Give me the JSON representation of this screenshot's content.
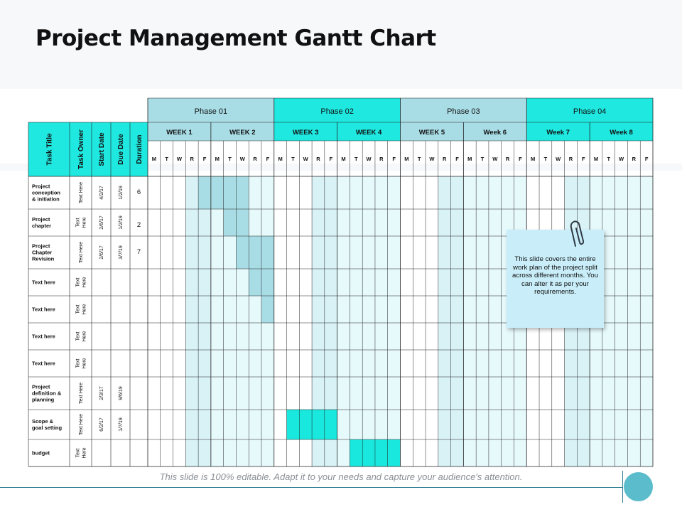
{
  "title": "Project Management Gantt Chart",
  "colors": {
    "phase_light": "#a9dde6",
    "phase_bright": "#1fe8e0",
    "col_light": "#d9f2f6",
    "col_dark": "#e6f9fb",
    "bar_light": "#a9dde6",
    "bar_bright": "#19e8de",
    "grid": "#222222",
    "note": "#c9eef9"
  },
  "header": {
    "task_title": "Task Title",
    "task_owner": "Task Owner",
    "start_date": "Start Date",
    "due_date": "Due Date",
    "duration": "Duration"
  },
  "phases": [
    {
      "label": "Phase 01",
      "style": "light"
    },
    {
      "label": "Phase 02",
      "style": "bright"
    },
    {
      "label": "Phase 03",
      "style": "light"
    },
    {
      "label": "Phase 04",
      "style": "bright"
    }
  ],
  "weeks": [
    "WEEK 1",
    "WEEK 2",
    "WEEK 3",
    "WEEK 4",
    "WEEK 5",
    "Week 6",
    "Week 7",
    "Week 8"
  ],
  "days": [
    "M",
    "T",
    "W",
    "R",
    "F"
  ],
  "tasks": [
    {
      "title": [
        "Project",
        "conception",
        "& initiation"
      ],
      "owner": [
        "Text Here"
      ],
      "start": "4/2/17",
      "due": "1/2/19",
      "duration": "6",
      "bar": {
        "start_day": 4,
        "end_day": 8,
        "style": "light"
      }
    },
    {
      "title": [
        "Project",
        "chapter"
      ],
      "owner": [
        "Text",
        "Here"
      ],
      "start": "2/6/17",
      "due": "1/2/19",
      "duration": "2",
      "bar": {
        "start_day": 6,
        "end_day": 8,
        "style": "light"
      }
    },
    {
      "title": [
        "Project",
        "Chapter",
        "Revision"
      ],
      "owner": [
        "Text Here"
      ],
      "start": "2/6/17",
      "due": "3/7/19",
      "duration": "7",
      "bar": {
        "start_day": 7,
        "end_day": 10,
        "style": "light"
      }
    },
    {
      "title": [
        "Text here"
      ],
      "owner": [
        "Text",
        "Here"
      ],
      "start": "",
      "due": "",
      "duration": "",
      "bar": {
        "start_day": 8,
        "end_day": 10,
        "style": "light"
      }
    },
    {
      "title": [
        "Text here"
      ],
      "owner": [
        "Text",
        "Here"
      ],
      "start": "",
      "due": "",
      "duration": "",
      "bar": {
        "start_day": 9,
        "end_day": 10,
        "style": "light"
      }
    },
    {
      "title": [
        "Text here"
      ],
      "owner": [
        "Text",
        "Here"
      ],
      "start": "",
      "due": "",
      "duration": "",
      "bar": null
    },
    {
      "title": [
        "Text here"
      ],
      "owner": [
        "Text",
        "Here"
      ],
      "start": "",
      "due": "",
      "duration": "",
      "bar": null
    },
    {
      "title": [
        "Project",
        "definition &",
        "planning"
      ],
      "owner": [
        "Text Here"
      ],
      "start": "2/3/17",
      "due": "9/6/19",
      "duration": "",
      "bar": null
    },
    {
      "title": [
        "Scope &",
        "goal setting"
      ],
      "owner": [
        "Text Here"
      ],
      "start": "6/2/17",
      "due": "1/7/19",
      "duration": "",
      "bar": {
        "start_day": 11,
        "end_day": 15,
        "style": "bright"
      }
    },
    {
      "title": [
        "budget"
      ],
      "owner": [
        "Text",
        "Here"
      ],
      "start": "",
      "due": "",
      "duration": "",
      "bar": {
        "start_day": 16,
        "end_day": 20,
        "style": "bright"
      }
    }
  ],
  "note": {
    "text": "This slide covers the entire work plan of the project split across different months. You can alter it as per your requirements.",
    "icon": "paperclip-icon"
  },
  "footer": {
    "text": "This slide is 100% editable. Adapt it to your needs and capture your audience's attention."
  }
}
